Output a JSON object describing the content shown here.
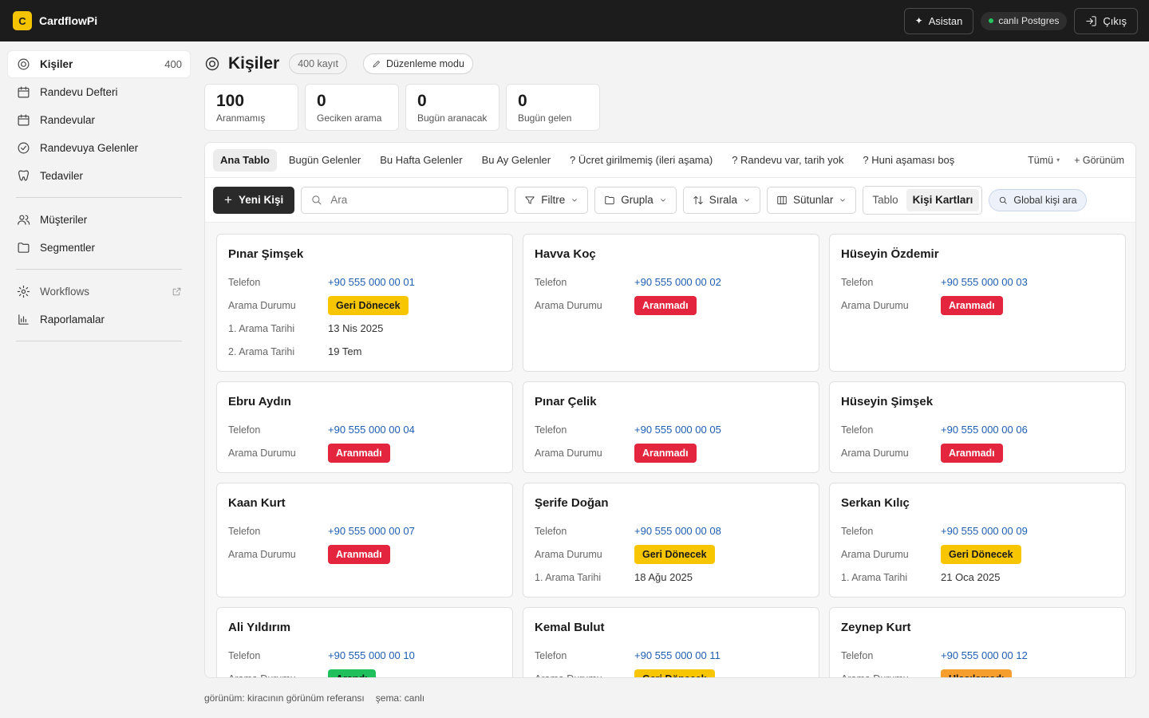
{
  "app": {
    "logo_letter": "C",
    "name": "CardflowPi"
  },
  "topbar": {
    "assistant_label": "Asistan",
    "db_status": "canlı Postgres",
    "logout_label": "Çıkış"
  },
  "sidebar": {
    "items": [
      {
        "label": "Kişiler",
        "count": "400",
        "icon": "target-icon",
        "active": true
      },
      {
        "label": "Randevu Defteri",
        "icon": "calendar-icon"
      },
      {
        "label": "Randevular",
        "icon": "calendar-icon"
      },
      {
        "label": "Randevuya Gelenler",
        "icon": "check-circle-icon"
      },
      {
        "label": "Tedaviler",
        "icon": "tooth-icon"
      }
    ],
    "items2": [
      {
        "label": "Müşteriler",
        "icon": "users-icon"
      },
      {
        "label": "Segmentler",
        "icon": "folder-icon"
      }
    ],
    "items3": [
      {
        "label": "Workflows",
        "icon": "gear-icon",
        "external": true
      },
      {
        "label": "Raporlamalar",
        "icon": "bar-chart-icon"
      }
    ]
  },
  "header": {
    "title": "Kişiler",
    "record_count": "400 kayıt",
    "edit_mode": "Düzenleme modu"
  },
  "stats": [
    {
      "value": "100",
      "label": "Aranmamış"
    },
    {
      "value": "0",
      "label": "Geciken arama"
    },
    {
      "value": "0",
      "label": "Bugün aranacak"
    },
    {
      "value": "0",
      "label": "Bugün gelen"
    }
  ],
  "tabs": [
    "Ana Tablo",
    "Bugün Gelenler",
    "Bu Hafta Gelenler",
    "Bu Ay Gelenler",
    "? Ücret girilmemiş (ileri aşama)",
    "? Randevu var, tarih yok",
    "? Huni aşaması boş"
  ],
  "tabs_right": {
    "all": "Tümü",
    "view": "+ Görünüm"
  },
  "toolbar": {
    "new_label": "Yeni Kişi",
    "search_placeholder": "Ara",
    "filter": "Filtre",
    "group": "Grupla",
    "sort": "Sırala",
    "columns": "Sütunlar",
    "view_table": "Tablo",
    "view_cards": "Kişi Kartları",
    "global_search": "Global kişi ara"
  },
  "labels": {
    "phone": "Telefon",
    "status": "Arama Durumu",
    "first_call": "1. Arama Tarihi",
    "second_call": "2. Arama Tarihi"
  },
  "status_colors": {
    "Geri Dönecek": {
      "bg": "#f7c600",
      "fg": "#1b1b1b"
    },
    "Aranmadı": {
      "bg": "#e3263e",
      "fg": "#ffffff"
    },
    "Arandı": {
      "bg": "#1fbf5b",
      "fg": "#0d1a12"
    },
    "Ulaşılamadı": {
      "bg": "#f59e2e",
      "fg": "#1b1b1b"
    }
  },
  "cards": [
    {
      "name": "Pınar Şimşek",
      "phone": "+90 555 000 00 01",
      "status": "Geri Dönecek",
      "first_call": "13 Nis 2025",
      "second_call": "19 Tem"
    },
    {
      "name": "Havva Koç",
      "phone": "+90 555 000 00 02",
      "status": "Aranmadı"
    },
    {
      "name": "Hüseyin Özdemir",
      "phone": "+90 555 000 00 03",
      "status": "Aranmadı"
    },
    {
      "name": "Ebru Aydın",
      "phone": "+90 555 000 00 04",
      "status": "Aranmadı"
    },
    {
      "name": "Pınar Çelik",
      "phone": "+90 555 000 00 05",
      "status": "Aranmadı"
    },
    {
      "name": "Hüseyin Şimşek",
      "phone": "+90 555 000 00 06",
      "status": "Aranmadı"
    },
    {
      "name": "Kaan Kurt",
      "phone": "+90 555 000 00 07",
      "status": "Aranmadı"
    },
    {
      "name": "Şerife Doğan",
      "phone": "+90 555 000 00 08",
      "status": "Geri Dönecek",
      "first_call": "18 Ağu 2025"
    },
    {
      "name": "Serkan Kılıç",
      "phone": "+90 555 000 00 09",
      "status": "Geri Dönecek",
      "first_call": "21 Oca 2025"
    },
    {
      "name": "Ali Yıldırım",
      "phone": "+90 555 000 00 10",
      "status": "Arandı"
    },
    {
      "name": "Kemal Bulut",
      "phone": "+90 555 000 00 11",
      "status": "Geri Dönecek"
    },
    {
      "name": "Zeynep Kurt",
      "phone": "+90 555 000 00 12",
      "status": "Ulaşılamadı"
    }
  ],
  "footer": {
    "view_ref": "görünüm: kiracının görünüm referansı",
    "schema": "şema: canlı"
  }
}
